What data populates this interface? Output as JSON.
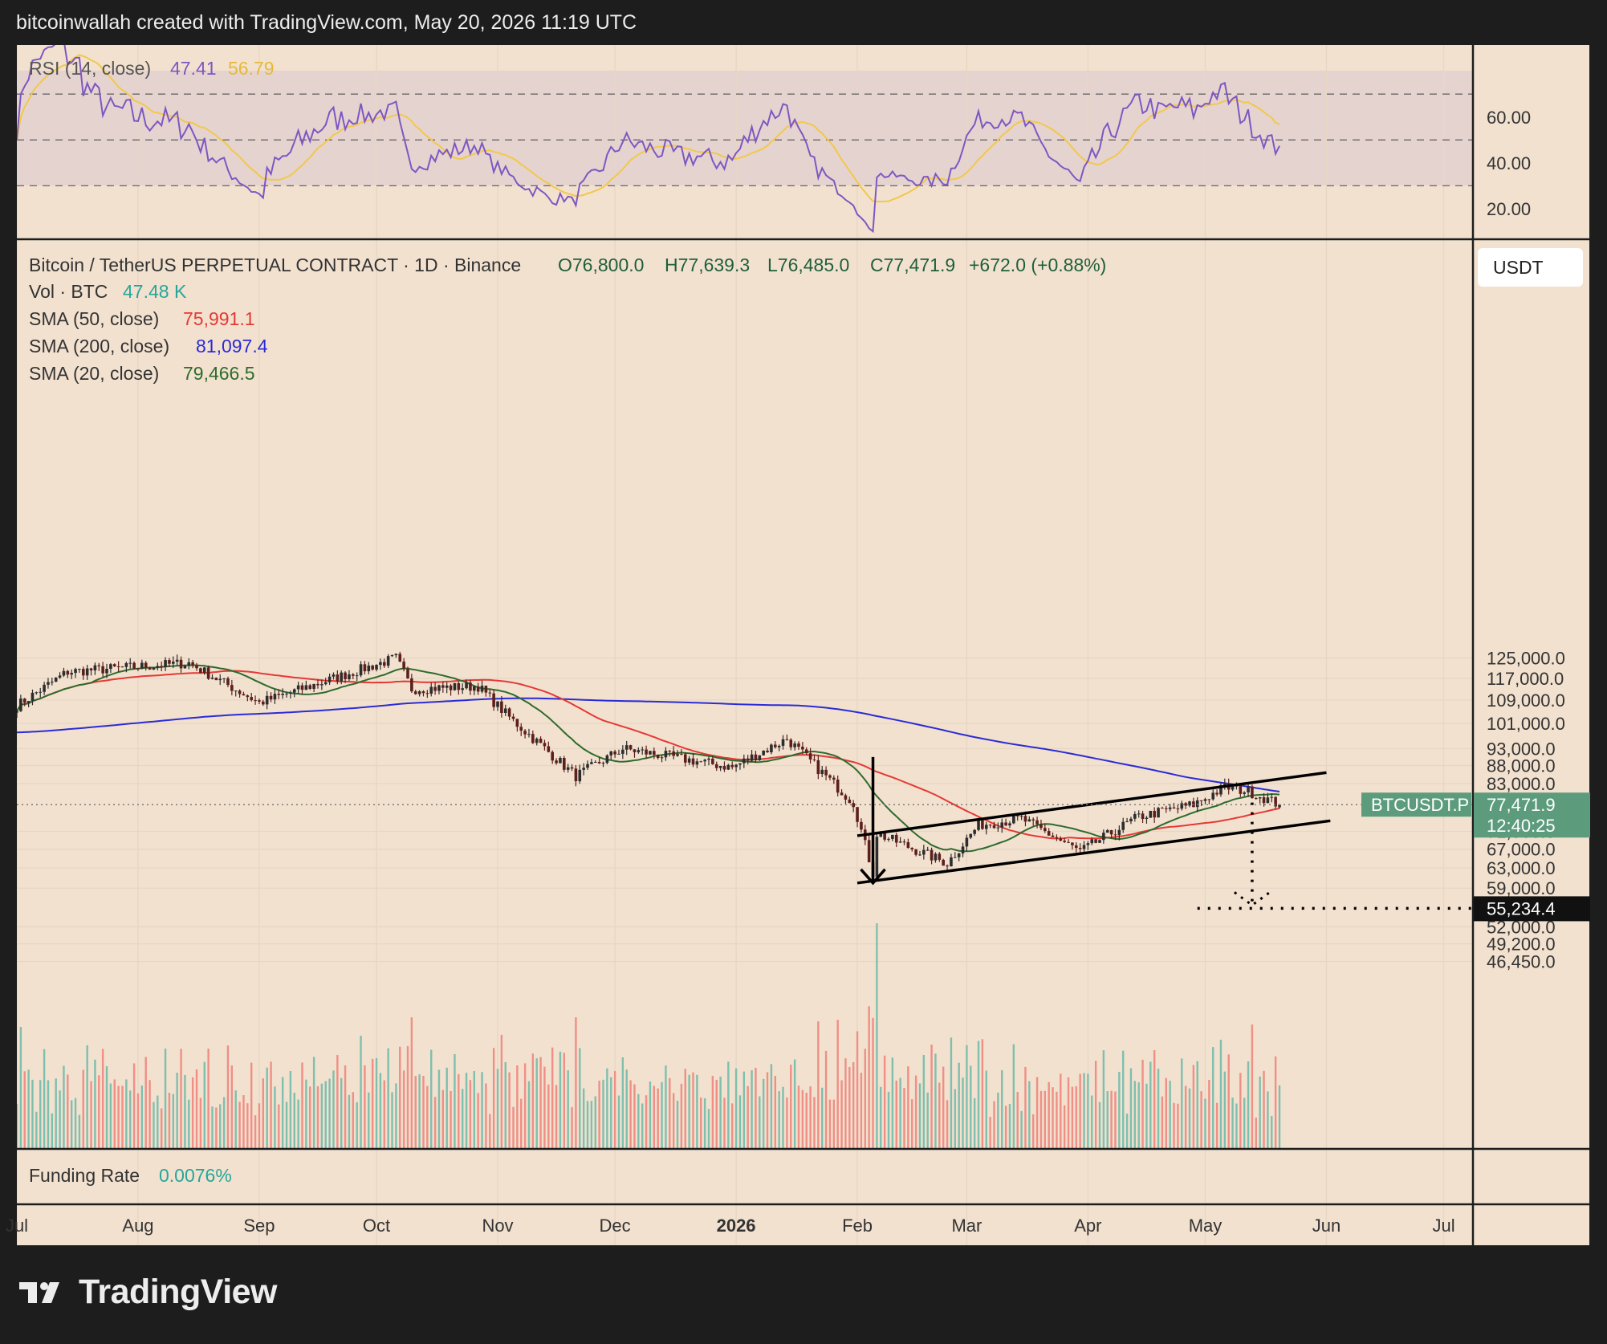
{
  "header": "bitcoinwallah created with TradingView.com, May 20, 2026 11:19 UTC",
  "brand": "TradingView",
  "colors": {
    "background": "#f2e1cf",
    "frame": "#1d1d1d",
    "rsi_line": "#7e57c2",
    "rsi_ma": "#f2c84b",
    "rsi_band": "#e5d3d0",
    "sma50": "#e53935",
    "sma200": "#2b2bd6",
    "sma20": "#2e6b2e",
    "candle_up": "#2d2d2d",
    "candle_down": "#5d1f1c",
    "vol_up": "#7fbfae",
    "vol_down": "#ef8f86",
    "last_price_bg": "#5c9c7c"
  },
  "rsi": {
    "label": "RSI (14, close)",
    "value": "47.41",
    "ma_value": "56.79",
    "ticks": [
      "60.00",
      "40.00",
      "20.00"
    ]
  },
  "legend": {
    "symbol": "Bitcoin / TetherUS PERPETUAL CONTRACT · 1D · Binance",
    "open": "O76,800.0",
    "high": "H77,639.3",
    "low": "L76,485.0",
    "close": "C77,471.9",
    "change": "+672.0 (+0.88%)",
    "vol_label": "Vol · BTC",
    "vol_value": "47.48 K",
    "sma50_label": "SMA (50, close)",
    "sma50_value": "75,991.1",
    "sma200_label": "SMA (200, close)",
    "sma200_value": "81,097.4",
    "sma20_label": "SMA (20, close)",
    "sma20_value": "79,466.5"
  },
  "currency_button": "USDT",
  "price_ticks": [
    "125,000.0",
    "117,000.0",
    "109,000.0",
    "101,000.0",
    "93,000.0",
    "88,000.0",
    "83,000.0",
    "71,000.0",
    "67,000.0",
    "63,000.0",
    "59,000.0",
    "52,000.0",
    "49,200.0",
    "46,450.0"
  ],
  "last_price": {
    "symbol_tag": "BTCUSDT.P",
    "price": "77,471.9",
    "countdown": "12:40:25"
  },
  "target_label": "55,234.4",
  "funding": {
    "label": "Funding Rate",
    "value": "0.0076%"
  },
  "time_axis": [
    "Jul",
    "Aug",
    "Sep",
    "Oct",
    "Nov",
    "Dec",
    "2026",
    "Feb",
    "Mar",
    "Apr",
    "May",
    "Jun",
    "Jul"
  ],
  "chart_data": {
    "type": "candlestick",
    "title": "Bitcoin / TetherUS PERPETUAL CONTRACT · 1D · Binance",
    "interval": "1D",
    "y_scale": "log",
    "ylim": [
      44000,
      132000
    ],
    "x_range": [
      "2025-07-01",
      "2026-07-31"
    ],
    "last": {
      "open": 76800.0,
      "high": 77639.3,
      "low": 76485.0,
      "close": 77471.9,
      "change": 672.0,
      "change_pct": 0.88
    },
    "key_points": [
      {
        "date": "2025-07-01",
        "close": 107000
      },
      {
        "date": "2025-07-14",
        "close": 119500
      },
      {
        "date": "2025-08-14",
        "close": 123000
      },
      {
        "date": "2025-09-01",
        "close": 108000
      },
      {
        "date": "2025-10-06",
        "close": 125000
      },
      {
        "date": "2025-10-10",
        "close": 113000
      },
      {
        "date": "2025-10-27",
        "close": 114000
      },
      {
        "date": "2025-11-04",
        "close": 103000
      },
      {
        "date": "2025-11-21",
        "close": 85000
      },
      {
        "date": "2025-12-03",
        "close": 93000
      },
      {
        "date": "2025-12-31",
        "close": 87500
      },
      {
        "date": "2026-01-14",
        "close": 96000
      },
      {
        "date": "2026-01-31",
        "close": 78000
      },
      {
        "date": "2026-02-05",
        "close": 62000
      },
      {
        "date": "2026-02-06",
        "close": 70500
      },
      {
        "date": "2026-02-24",
        "close": 64000
      },
      {
        "date": "2026-03-04",
        "close": 72500
      },
      {
        "date": "2026-03-15",
        "close": 74000
      },
      {
        "date": "2026-03-30",
        "close": 66500
      },
      {
        "date": "2026-04-14",
        "close": 74500
      },
      {
        "date": "2026-04-28",
        "close": 77500
      },
      {
        "date": "2026-05-06",
        "close": 82000
      },
      {
        "date": "2026-05-12",
        "close": 81000
      },
      {
        "date": "2026-05-20",
        "close": 77471.9
      }
    ],
    "indicators": {
      "sma50": 75991.1,
      "sma200": 81097.4,
      "sma20": 79466.5,
      "rsi14": 47.41,
      "rsi_ma": 56.79,
      "volume_btc": "47.48 K",
      "funding_rate": "0.0076%"
    },
    "annotations": {
      "channel_upper": [
        {
          "date": "2026-02-01",
          "price": 70000
        },
        {
          "date": "2026-06-01",
          "price": 86000
        }
      ],
      "channel_lower": [
        {
          "date": "2026-02-01",
          "price": 60000
        },
        {
          "date": "2026-06-02",
          "price": 73500
        }
      ],
      "flagpole_top": 90500,
      "flagpole_bottom": 60000,
      "target": 55234.4
    }
  }
}
